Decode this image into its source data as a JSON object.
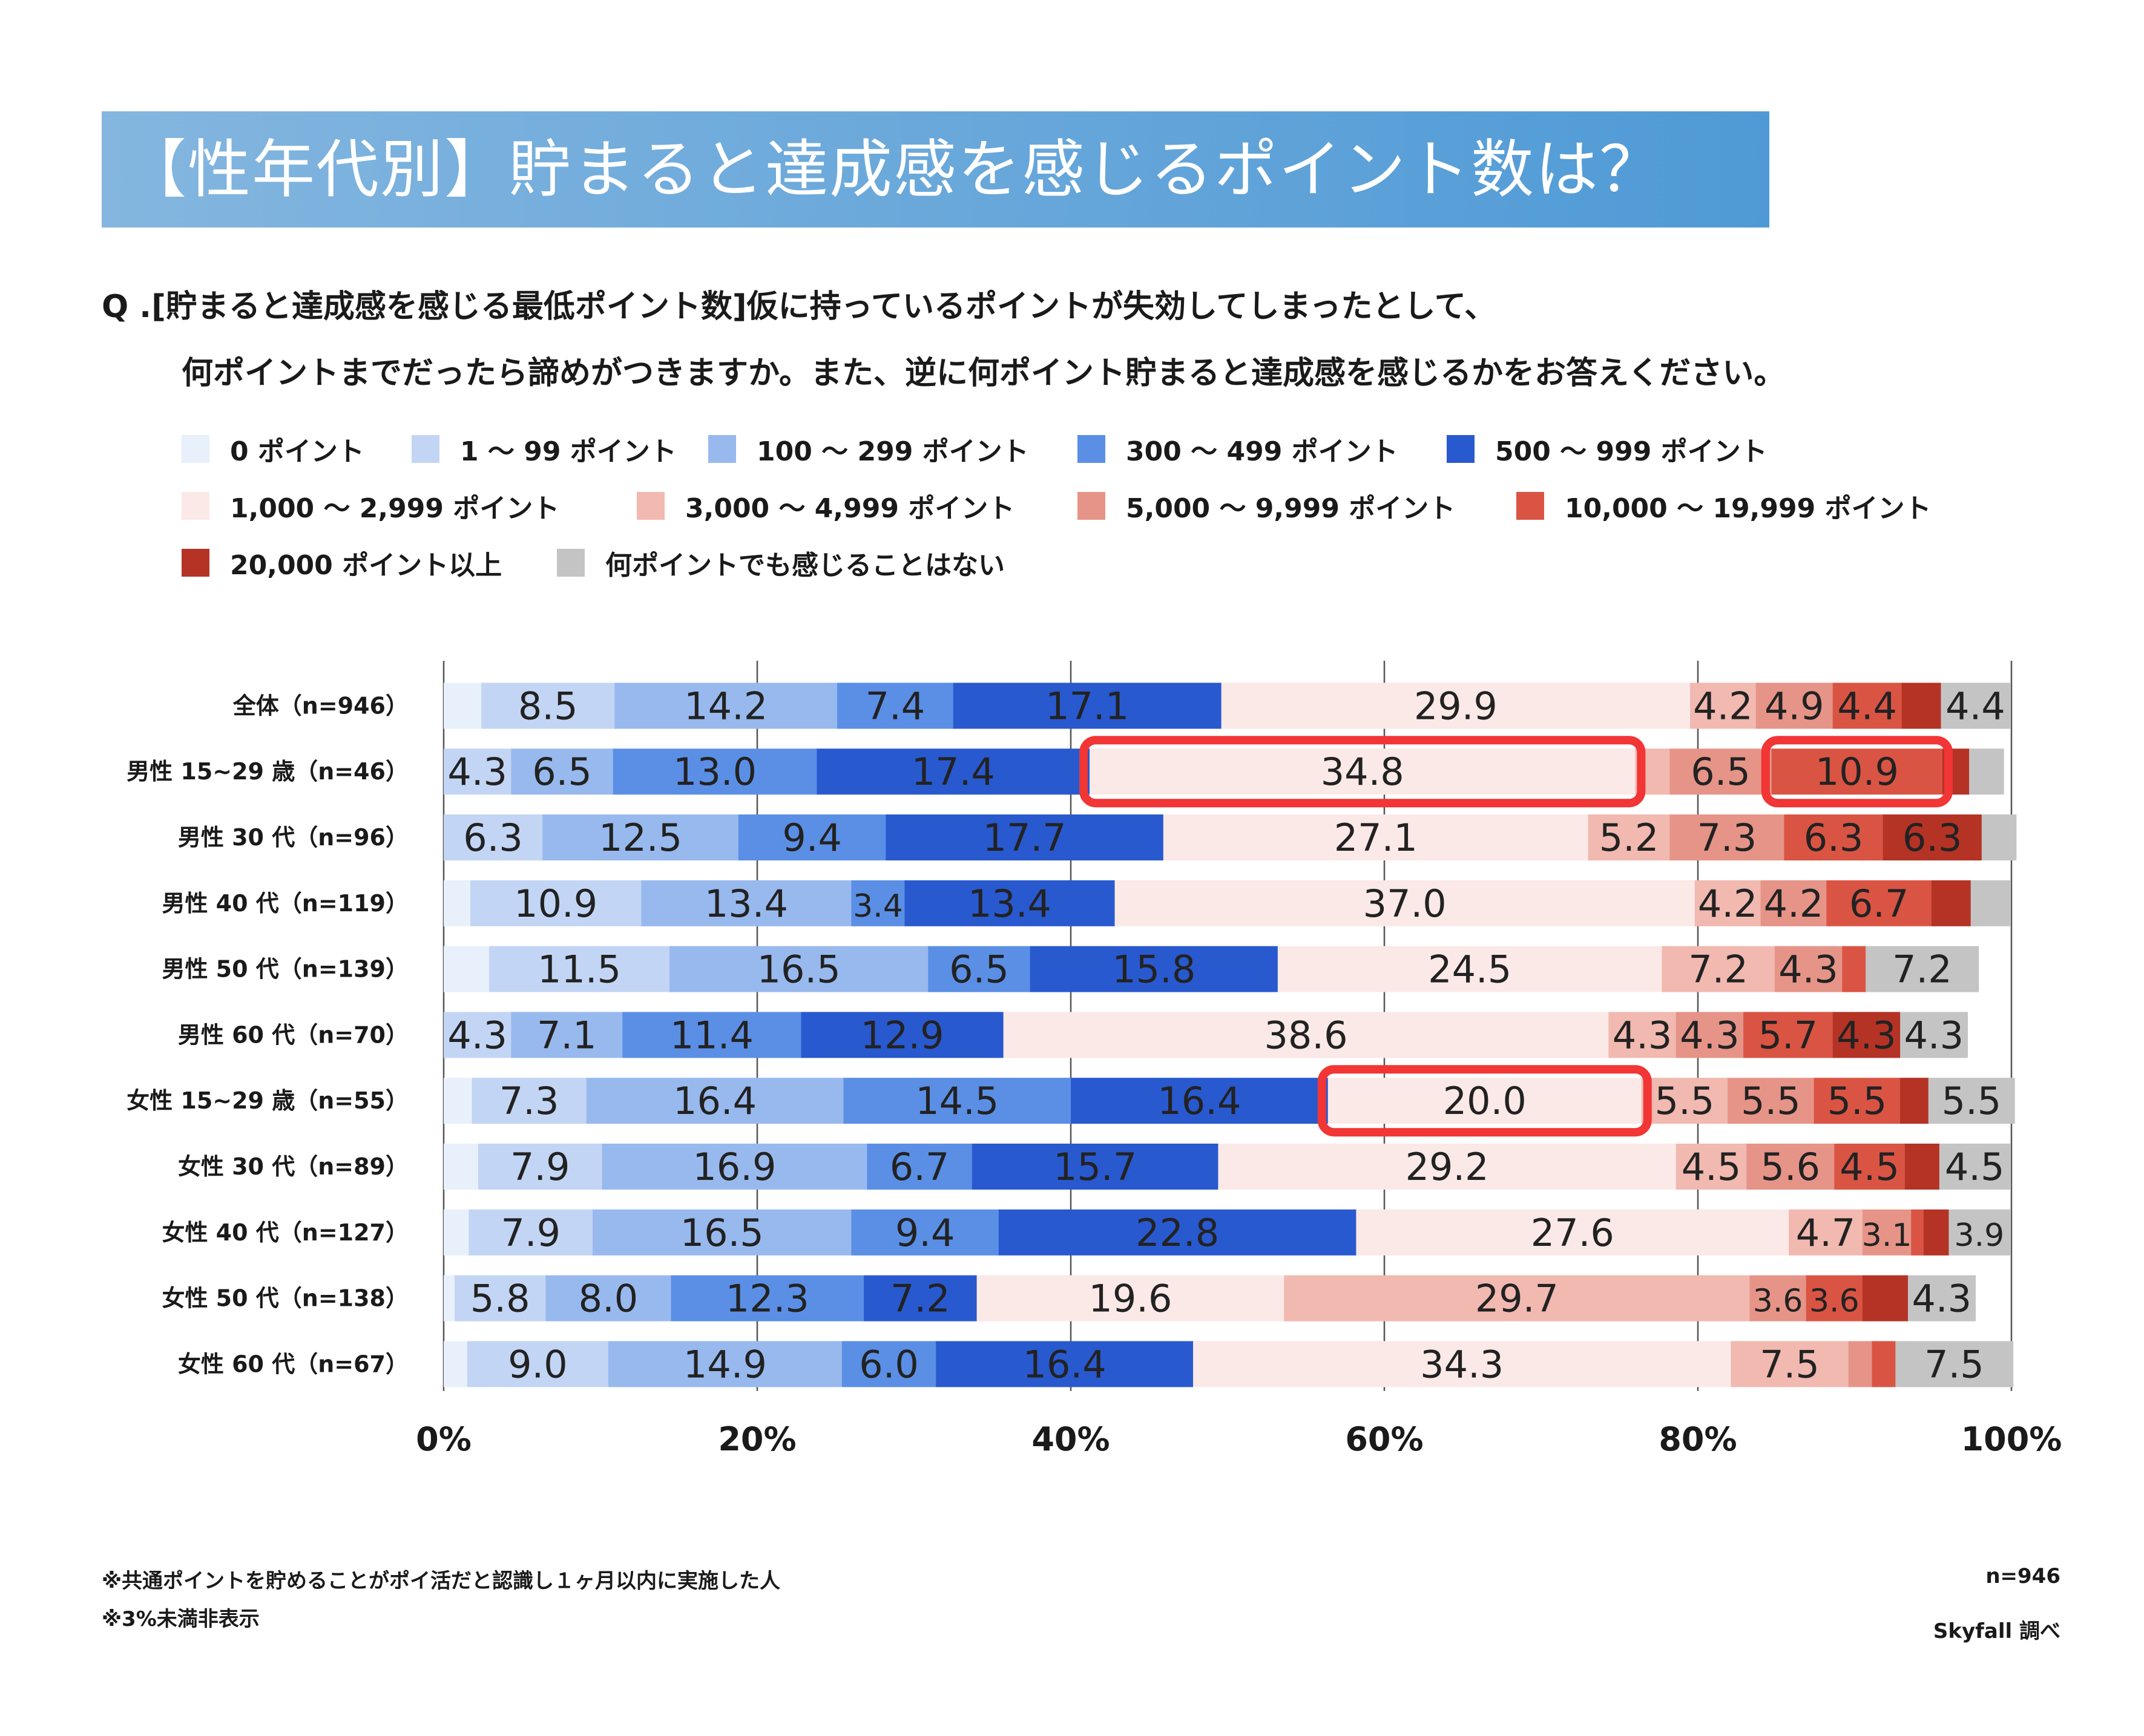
{
  "header": {
    "title": "【性年代別】貯まると達成感を感じるポイント数は？"
  },
  "question": {
    "line1": "Q .[貯まると達成感を感じる最低ポイント数]仮に持っているポイントが失効してしまったとして、",
    "line2": "何ポイントまでだったら諦めがつきますか。また、逆に何ポイント貯まると達成感を感じるかをお答えください。"
  },
  "footer": {
    "note1": "※共通ポイントを貯めることがポイ活だと認識し１ヶ月以内に実施した人",
    "note2": "※3%未満非表示",
    "sample": "n=946",
    "source": "Skyfall 調べ"
  },
  "chart_data": {
    "type": "bar",
    "orientation": "horizontal-stacked-100",
    "xlim": [
      0,
      100
    ],
    "x_ticks": [
      "0%",
      "20%",
      "40%",
      "60%",
      "80%",
      "100%"
    ],
    "grid": true,
    "label_threshold": 3,
    "categories": [
      "全体（n=946）",
      "男性 15~29 歳（n=46）",
      "男性 30 代（n=96）",
      "男性 40 代（n=119）",
      "男性 50 代（n=139）",
      "男性 60 代（n=70）",
      "女性 15~29 歳（n=55）",
      "女性 30 代（n=89）",
      "女性 40 代（n=127）",
      "女性 50 代（n=138）",
      "女性 60 代（n=67）"
    ],
    "series": [
      {
        "name": "0 ポイント",
        "color": "#e8f0fb",
        "values": [
          2.4,
          0,
          0,
          1.7,
          2.9,
          0,
          1.8,
          2.2,
          1.6,
          0.7,
          1.5
        ]
      },
      {
        "name": "1 ～ 99 ポイント",
        "color": "#c3d5f5",
        "values": [
          8.5,
          4.3,
          6.3,
          10.9,
          11.5,
          4.3,
          7.3,
          7.9,
          7.9,
          5.8,
          9.0
        ]
      },
      {
        "name": "100 ～ 299 ポイント",
        "color": "#98b9ee",
        "values": [
          14.2,
          6.5,
          12.5,
          13.4,
          16.5,
          7.1,
          16.4,
          16.9,
          16.5,
          8.0,
          14.9
        ]
      },
      {
        "name": "300 ～ 499 ポイント",
        "color": "#5a8fe5",
        "values": [
          7.4,
          13.0,
          9.4,
          3.4,
          6.5,
          11.4,
          14.5,
          6.7,
          9.4,
          12.3,
          6.0
        ]
      },
      {
        "name": "500 ～ 999 ポイント",
        "color": "#2959cf",
        "values": [
          17.1,
          17.4,
          17.7,
          13.4,
          15.8,
          12.9,
          16.4,
          15.7,
          22.8,
          7.2,
          16.4
        ]
      },
      {
        "name": "1,000 ～ 2,999 ポイント",
        "color": "#fbe9e7",
        "values": [
          29.9,
          34.8,
          27.1,
          37.0,
          24.5,
          38.6,
          20.0,
          29.2,
          27.6,
          19.6,
          34.3
        ]
      },
      {
        "name": "3,000 ～ 4,999 ポイント",
        "color": "#f1b9b0",
        "values": [
          4.2,
          2.2,
          5.2,
          4.2,
          7.2,
          4.3,
          5.5,
          4.5,
          4.7,
          29.7,
          7.5
        ]
      },
      {
        "name": "5,000 ～ 9,999 ポイント",
        "color": "#e69488",
        "values": [
          4.9,
          6.5,
          7.3,
          4.2,
          4.3,
          4.3,
          5.5,
          5.6,
          3.1,
          3.6,
          1.5
        ]
      },
      {
        "name": "10,000 ～ 19,999 ポイント",
        "color": "#da5444",
        "values": [
          4.4,
          10.9,
          6.3,
          6.7,
          1.5,
          5.7,
          5.5,
          4.5,
          0.8,
          3.6,
          1.5
        ]
      },
      {
        "name": "20,000 ポイント以上",
        "color": "#b43325",
        "values": [
          2.5,
          1.7,
          6.3,
          2.5,
          0,
          4.3,
          1.8,
          2.2,
          1.6,
          2.9,
          0
        ]
      },
      {
        "name": "何ポイントでも感じることはない",
        "color": "#c4c4c4",
        "values": [
          4.4,
          2.2,
          2.2,
          2.5,
          7.2,
          4.3,
          5.5,
          4.5,
          3.9,
          4.3,
          7.5
        ]
      }
    ],
    "highlights": [
      {
        "row": 1,
        "series": 5,
        "color": "#f23535"
      },
      {
        "row": 1,
        "series": 8,
        "color": "#f23535"
      },
      {
        "row": 6,
        "series": 5,
        "color": "#f23535"
      }
    ]
  }
}
